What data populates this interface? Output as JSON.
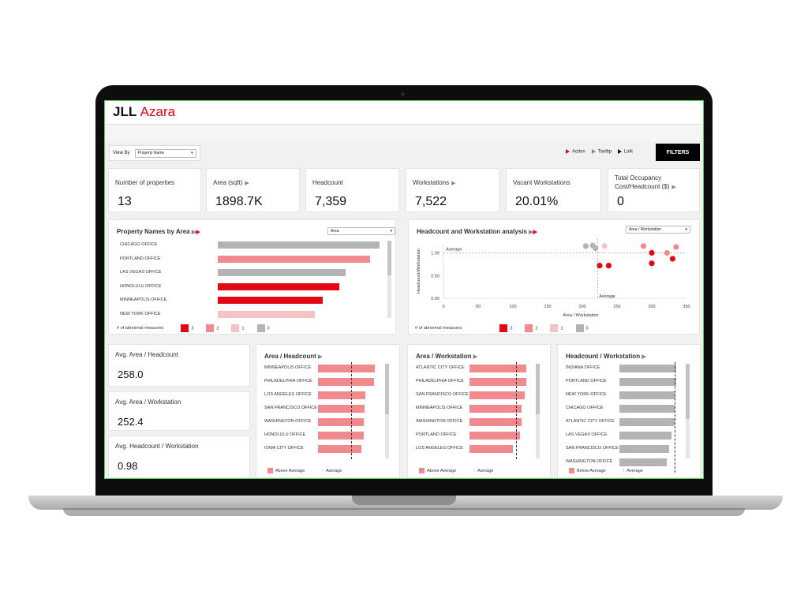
{
  "app": {
    "brand": "JLL",
    "product": "Azara"
  },
  "view_by": {
    "label": "View By",
    "value": "Property Name"
  },
  "legend_top": {
    "action": "Action",
    "tooltip": "Tooltip",
    "link": "Link"
  },
  "filters_label": "FILTERS",
  "kpis": [
    {
      "label": "Number of properties",
      "value": "13",
      "arrow": ""
    },
    {
      "label": "Area (sqft)",
      "value": "1898.7K",
      "arrow": "▶"
    },
    {
      "label": "Headcount",
      "value": "7,359",
      "arrow": ""
    },
    {
      "label": "Workstations",
      "value": "7,522",
      "arrow": "▶"
    },
    {
      "label": "Vacant Workstations",
      "value": "20.01%",
      "arrow": ""
    },
    {
      "label": "Total Occupancy Cost/Headcount ($)",
      "value": "0",
      "arrow": "▶"
    }
  ],
  "property_area": {
    "title": "Property Names by Area",
    "dropdown": "Area",
    "legend_label": "# of abnormal measures",
    "legend_items": [
      "3",
      "2",
      "1",
      "0"
    ],
    "legend_colors": [
      "#e30613",
      "#f08a8f",
      "#f6c2c4",
      "#b3b3b3"
    ],
    "rows": [
      {
        "name": "CHICAGO OFFICE",
        "value": 1.0,
        "color": "#b3b3b3"
      },
      {
        "name": "PORTLAND OFFICE",
        "value": 0.94,
        "color": "#f08a8f"
      },
      {
        "name": "LAS VEGAS OFFICE",
        "value": 0.79,
        "color": "#b3b3b3"
      },
      {
        "name": "HONOLULU OFFICE",
        "value": 0.75,
        "color": "#e30613"
      },
      {
        "name": "MINNEAPOLIS OFFICE",
        "value": 0.65,
        "color": "#e30613"
      },
      {
        "name": "NEW YORK OFFICE",
        "value": 0.6,
        "color": "#f6c2c4"
      }
    ]
  },
  "scatter": {
    "title": "Headcount and Workstation analysis",
    "dropdown": "Area / Workstation",
    "xlabel": "Area / Workstation",
    "ylabel": "Headcount/Workstation",
    "x_ticks": [
      "0",
      "50",
      "100",
      "150",
      "200",
      "250",
      "300",
      "350"
    ],
    "y_ticks": [
      "1.00",
      "0.50",
      "0.00"
    ],
    "avg_label_x": "Average",
    "avg_label_y": "Average",
    "legend_label": "# of abnormal measures",
    "legend_items": [
      "3",
      "2",
      "1",
      "0"
    ],
    "legend_colors": [
      "#e30613",
      "#f08a8f",
      "#f6c2c4",
      "#b3b3b3"
    ]
  },
  "chart_data": {
    "type": "scatter",
    "xlabel": "Area / Workstation",
    "ylabel": "Headcount/Workstation",
    "xlim": [
      0,
      350
    ],
    "ylim": [
      0,
      1.2
    ],
    "avg_x": 222,
    "avg_y": 1.0,
    "points": [
      {
        "x": 205,
        "y": 1.15,
        "group": "0"
      },
      {
        "x": 215,
        "y": 1.16,
        "group": "0"
      },
      {
        "x": 219,
        "y": 1.1,
        "group": "0"
      },
      {
        "x": 232,
        "y": 1.15,
        "group": "1"
      },
      {
        "x": 225,
        "y": 0.72,
        "group": "3"
      },
      {
        "x": 238,
        "y": 0.72,
        "group": "3"
      },
      {
        "x": 288,
        "y": 1.15,
        "group": "2"
      },
      {
        "x": 300,
        "y": 1.0,
        "group": "3"
      },
      {
        "x": 300,
        "y": 0.77,
        "group": "3"
      },
      {
        "x": 322,
        "y": 1.0,
        "group": "2"
      },
      {
        "x": 330,
        "y": 0.87,
        "group": "3"
      },
      {
        "x": 335,
        "y": 1.13,
        "group": "2"
      }
    ]
  },
  "metrics": [
    {
      "label": "Avg. Area / Headcount",
      "value": "258.0"
    },
    {
      "label": "Avg. Area / Workstation",
      "value": "252.4"
    },
    {
      "label": "Avg. Headcount / Workstation",
      "value": "0.98"
    }
  ],
  "area_headcount": {
    "title": "Area  / Headcount",
    "legend_a": "Above Average",
    "legend_b": "Average",
    "color": "#f08a8f",
    "rows": [
      {
        "name": "MINNEAPOLIS OFFICE",
        "value": 1.0
      },
      {
        "name": "PHILADELPHIA OFFICE",
        "value": 0.99
      },
      {
        "name": "LOS ANGELES OFFICE",
        "value": 0.84
      },
      {
        "name": "SAN FRANCISCO OFFICE",
        "value": 0.82
      },
      {
        "name": "WASHINGTON OFFICE",
        "value": 0.8
      },
      {
        "name": "HONOLULU OFFICE",
        "value": 0.8
      },
      {
        "name": "IOWA CITY OFFICE",
        "value": 0.77
      }
    ]
  },
  "area_workstation": {
    "title": "Area  / Workstation",
    "legend_a": "Above Average",
    "legend_b": "Average",
    "color": "#f08a8f",
    "rows": [
      {
        "name": "ATLANTIC CITY OFFICE",
        "value": 1.0
      },
      {
        "name": "PHILADELPHIA OFFICE",
        "value": 1.0
      },
      {
        "name": "SAN FRANCISCO OFFICE",
        "value": 0.97
      },
      {
        "name": "MINNEAPOLIS OFFICE",
        "value": 0.92
      },
      {
        "name": "WASHINGTON OFFICE",
        "value": 0.92
      },
      {
        "name": "PORTLAND OFFICE",
        "value": 0.89
      },
      {
        "name": "LOS ANGELES OFFICE",
        "value": 0.77
      }
    ]
  },
  "headcount_workstation": {
    "title": "Headcount / Workstation",
    "legend_a": "Below Average",
    "legend_b": "Average",
    "color": "#b3b3b3",
    "rows": [
      {
        "name": "INDIANA OFFICE",
        "value": 1.0
      },
      {
        "name": "PORTLAND OFFICE",
        "value": 1.0
      },
      {
        "name": "NEW YORK OFFICE",
        "value": 0.98
      },
      {
        "name": "CHICAGO OFFICE",
        "value": 0.97
      },
      {
        "name": "ATLANTIC CITY OFFICE",
        "value": 0.97
      },
      {
        "name": "LAS VEGAS OFFICE",
        "value": 0.92
      },
      {
        "name": "SAN FRANCISCO OFFICE",
        "value": 0.87
      },
      {
        "name": "WASHINGTON OFFICE",
        "value": 0.83
      }
    ]
  }
}
